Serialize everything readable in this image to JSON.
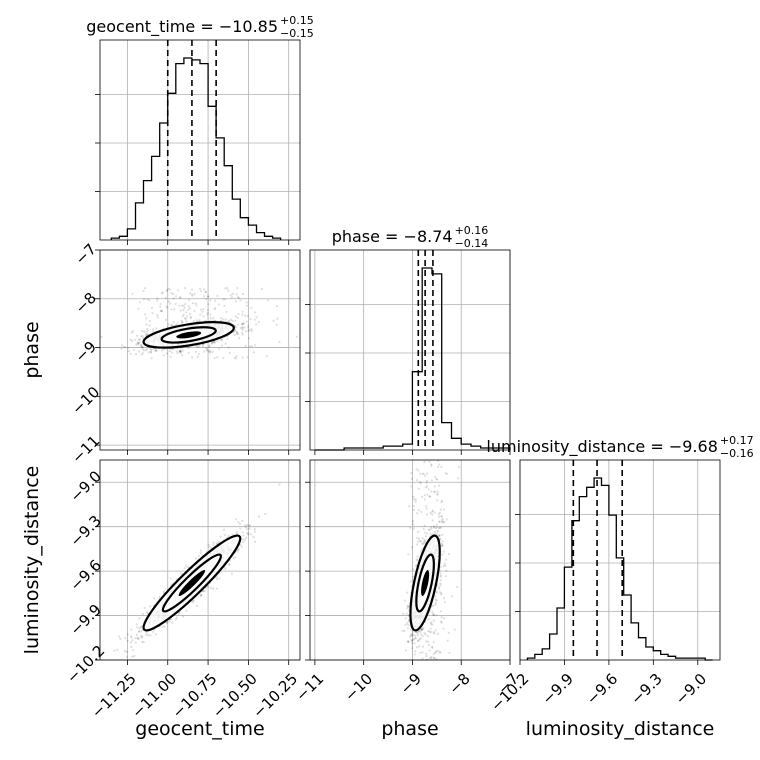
{
  "chart_data": {
    "type": "corner",
    "grid": true,
    "parameters": [
      {
        "name": "geocent_time",
        "xlabel": "geocent_time",
        "title": {
          "prefix": "geocent_time = ",
          "median": "−10.85",
          "plus": "+0.15",
          "minus": "−0.15"
        },
        "median": -10.85,
        "q_low": -11.0,
        "q_high": -10.7,
        "range": [
          -11.42,
          -10.18
        ],
        "ticks": [
          -11.25,
          -11.0,
          -10.75,
          -10.5,
          -10.25
        ],
        "tick_labels": [
          "−11.25",
          "−11.00",
          "−10.75",
          "−10.50",
          "−10.25"
        ],
        "hist": {
          "edges": [
            -11.35,
            -11.3,
            -11.25,
            -11.2,
            -11.15,
            -11.1,
            -11.05,
            -11.0,
            -10.95,
            -10.9,
            -10.85,
            -10.8,
            -10.75,
            -10.7,
            -10.65,
            -10.6,
            -10.55,
            -10.5,
            -10.45,
            -10.4,
            -10.35,
            -10.3
          ],
          "counts": [
            1,
            2,
            6,
            20,
            32,
            45,
            63,
            79,
            95,
            98,
            97,
            95,
            72,
            55,
            40,
            22,
            12,
            8,
            4,
            2,
            1
          ]
        }
      },
      {
        "name": "phase",
        "xlabel": "phase",
        "ylabel": "phase",
        "title": {
          "prefix": "phase = ",
          "median": "−8.74",
          "plus": "+0.16",
          "minus": "−0.14"
        },
        "median": -8.74,
        "q_low": -8.88,
        "q_high": -8.58,
        "range": [
          -11.1,
          -7.0
        ],
        "ticks": [
          -11,
          -10,
          -9,
          -8,
          -7
        ],
        "tick_labels": [
          "−11",
          "−10",
          "−9",
          "−8",
          "−7"
        ],
        "hist": {
          "edges": [
            -11.0,
            -10.8,
            -10.6,
            -10.4,
            -10.2,
            -10.0,
            -9.8,
            -9.6,
            -9.4,
            -9.2,
            -9.0,
            -8.8,
            -8.6,
            -8.4,
            -8.2,
            -8.0,
            -7.8,
            -7.6,
            -7.4,
            -7.2,
            -7.0
          ],
          "counts": [
            0,
            0,
            0,
            1,
            1,
            1,
            1,
            2,
            2,
            3,
            40,
            93,
            90,
            14,
            6,
            3,
            2,
            1,
            1,
            1
          ]
        }
      },
      {
        "name": "luminosity_distance",
        "xlabel": "luminosity_distance",
        "ylabel": "luminosity_distance",
        "title": {
          "prefix": "luminosity_distance = ",
          "median": "−9.68",
          "plus": "+0.17",
          "minus": "−0.16"
        },
        "median": -9.68,
        "q_low": -9.84,
        "q_high": -9.51,
        "range": [
          -10.2,
          -8.85
        ],
        "ticks": [
          -10.2,
          -9.9,
          -9.6,
          -9.3,
          -9.0
        ],
        "tick_labels": [
          "−10.2",
          "−9.9",
          "−9.6",
          "−9.3",
          "−9.0"
        ],
        "hist": {
          "edges": [
            -10.15,
            -10.1,
            -10.05,
            -10.0,
            -9.95,
            -9.9,
            -9.85,
            -9.8,
            -9.75,
            -9.7,
            -9.65,
            -9.6,
            -9.55,
            -9.5,
            -9.45,
            -9.4,
            -9.35,
            -9.3,
            -9.25,
            -9.2,
            -9.15,
            -9.1,
            -9.05,
            -9.0,
            -8.95,
            -8.9
          ],
          "counts": [
            1,
            3,
            6,
            14,
            28,
            50,
            75,
            88,
            93,
            98,
            94,
            78,
            55,
            35,
            20,
            12,
            7,
            5,
            3,
            2,
            1,
            1,
            1,
            1,
            0
          ]
        }
      }
    ],
    "pairs": [
      {
        "x": "geocent_time",
        "y": "phase",
        "center": [
          -10.87,
          -8.74
        ],
        "sd": [
          0.14,
          0.13
        ],
        "rho": 0.55,
        "outlier_spread": 0.8
      },
      {
        "x": "geocent_time",
        "y": "luminosity_distance",
        "center": [
          -10.85,
          -9.68
        ],
        "sd": [
          0.15,
          0.16
        ],
        "rho": 0.94,
        "outlier_spread": 0.0
      },
      {
        "x": "phase",
        "y": "luminosity_distance",
        "center": [
          -8.74,
          -9.68
        ],
        "sd": [
          0.15,
          0.16
        ],
        "rho": 0.65,
        "outlier_spread": 0.9
      }
    ]
  }
}
